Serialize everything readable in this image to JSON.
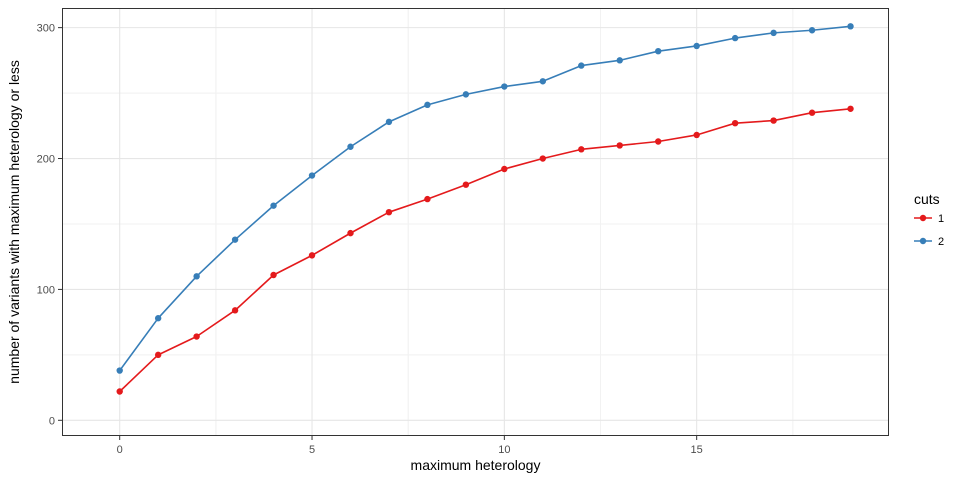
{
  "chart_data": {
    "type": "line",
    "xlabel": "maximum heterology",
    "ylabel": "number of variants with maximum heterology or less",
    "xlim": [
      -1.5,
      20
    ],
    "ylim": [
      -12,
      315
    ],
    "x_ticks": [
      0,
      5,
      10,
      15
    ],
    "y_ticks": [
      0,
      100,
      200,
      300
    ],
    "x_tick_labels": [
      "0",
      "5",
      "10",
      "15"
    ],
    "y_tick_labels": [
      "0",
      "100",
      "200",
      "300"
    ],
    "grid": true,
    "legend": {
      "title": "cuts",
      "position": "right"
    },
    "x": [
      0,
      1,
      2,
      3,
      4,
      5,
      6,
      7,
      8,
      9,
      10,
      11,
      12,
      13,
      14,
      15,
      16,
      17,
      18,
      19
    ],
    "series": [
      {
        "name": "1",
        "color": "#e41a1c",
        "values": [
          22,
          50,
          64,
          84,
          111,
          126,
          143,
          159,
          169,
          180,
          192,
          200,
          207,
          210,
          213,
          218,
          227,
          229,
          235,
          238
        ]
      },
      {
        "name": "2",
        "color": "#377eb8",
        "values": [
          38,
          78,
          110,
          138,
          164,
          187,
          209,
          228,
          241,
          249,
          255,
          259,
          271,
          275,
          282,
          286,
          292,
          296,
          298,
          301
        ]
      }
    ]
  }
}
